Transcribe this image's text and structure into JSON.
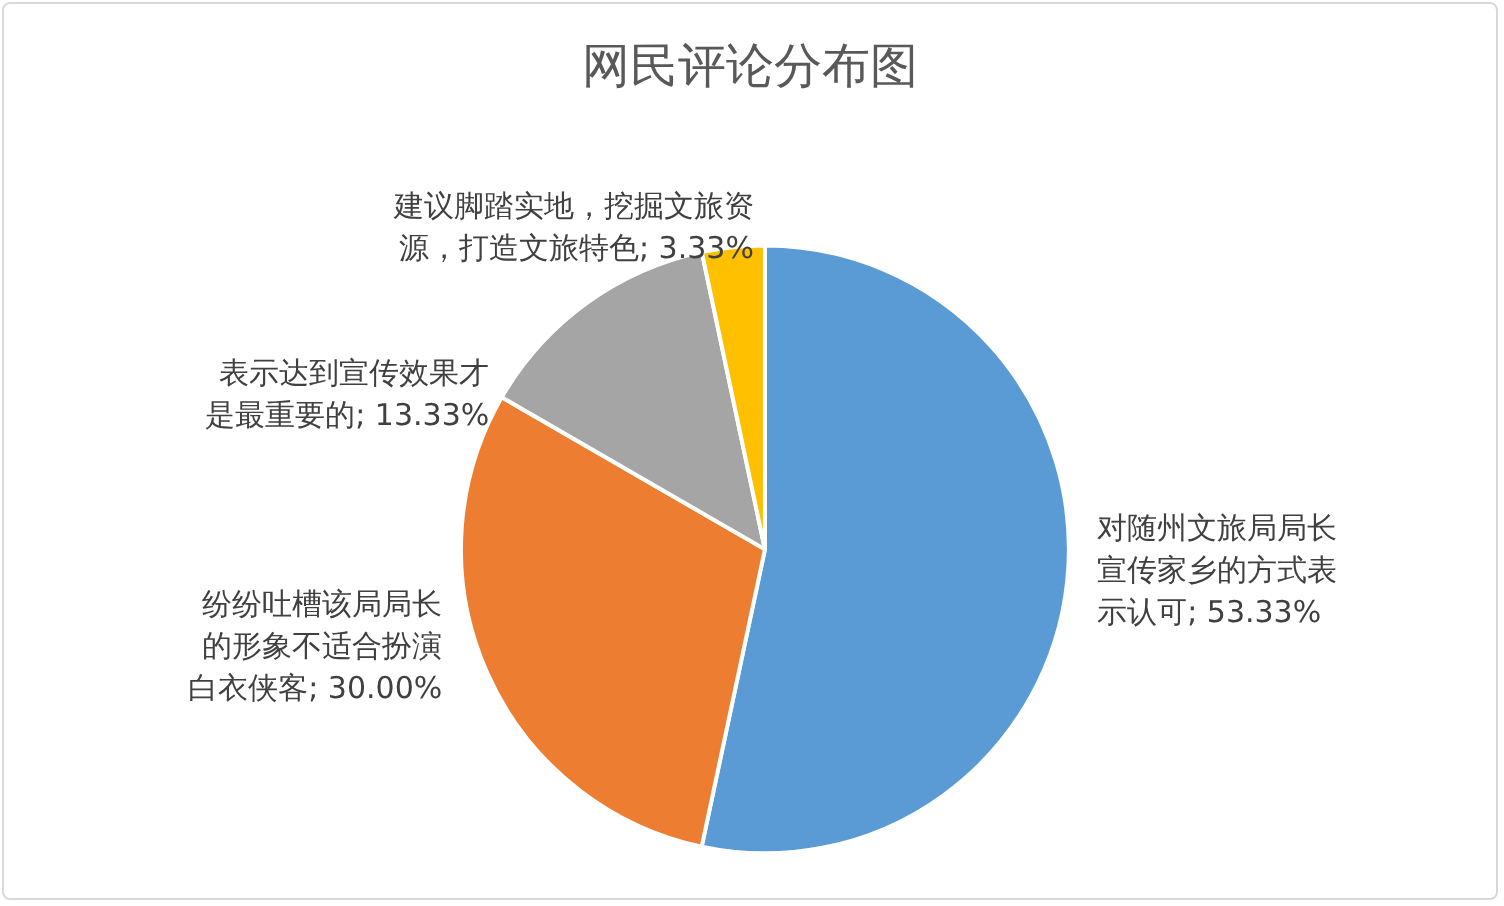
{
  "chart_data": {
    "type": "pie",
    "title": "网民评论分布图",
    "categories": [
      "对随州文旅局局长宣传家乡的方式表示认可",
      "纷纷吐槽该局局长的形象不适合扮演白衣侠客",
      "表示达到宣传效果才是最重要的",
      "建议脚踏实地，挖掘文旅资源，打造文旅特色"
    ],
    "values": [
      53.33,
      30.0,
      13.33,
      3.33
    ],
    "value_labels": [
      "53.33%",
      "30.00%",
      "13.33%",
      "3.33%"
    ],
    "colors": [
      "#5b9bd5",
      "#ed7d31",
      "#a5a5a5",
      "#ffc000"
    ],
    "legend": false
  }
}
